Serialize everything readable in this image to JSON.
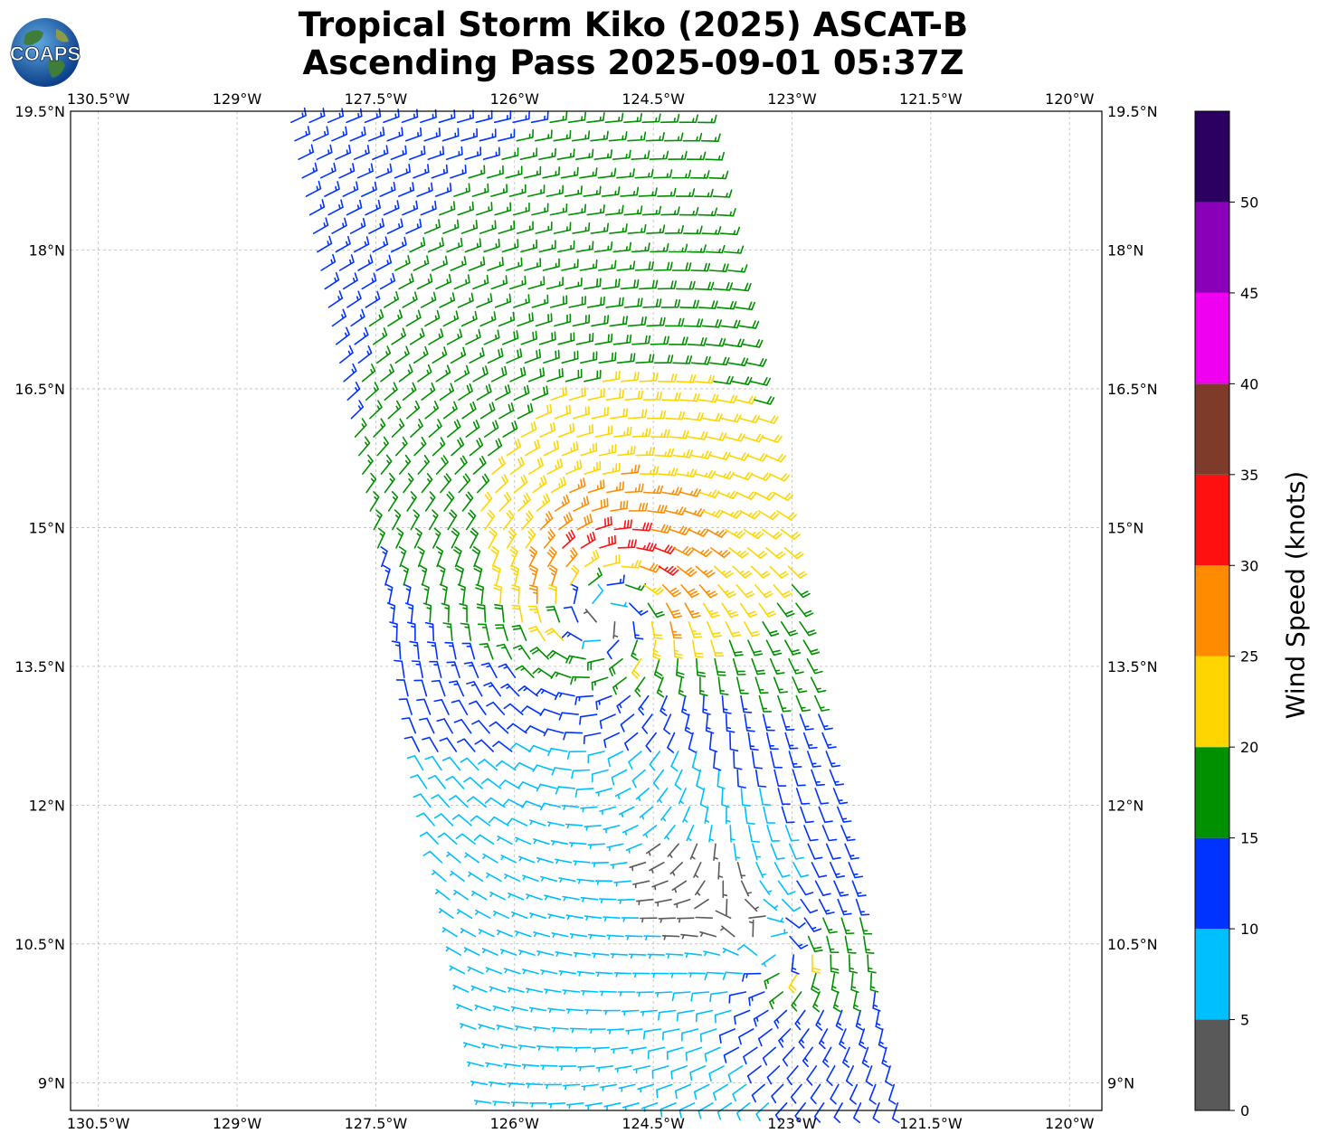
{
  "title_line1": "Tropical Storm Kiko (2025) ASCAT-B",
  "title_line2": "Ascending Pass 2025-09-01 05:37Z",
  "logo_text": "COAPS",
  "colorbar": {
    "label": "Wind Speed (knots)",
    "ticks": [
      "0",
      "5",
      "10",
      "15",
      "20",
      "25",
      "30",
      "35",
      "40",
      "45",
      "50"
    ],
    "bins": [
      {
        "min": 0,
        "max": 5,
        "color": "#595959"
      },
      {
        "min": 5,
        "max": 10,
        "color": "#00bfff"
      },
      {
        "min": 10,
        "max": 15,
        "color": "#0033ff"
      },
      {
        "min": 15,
        "max": 20,
        "color": "#009000"
      },
      {
        "min": 20,
        "max": 25,
        "color": "#ffd500"
      },
      {
        "min": 25,
        "max": 30,
        "color": "#ff8c00"
      },
      {
        "min": 30,
        "max": 35,
        "color": "#ff1010"
      },
      {
        "min": 35,
        "max": 40,
        "color": "#7f3b2a"
      },
      {
        "min": 40,
        "max": 45,
        "color": "#f000f0"
      },
      {
        "min": 45,
        "max": 50,
        "color": "#8a00b8"
      },
      {
        "min": 50,
        "max": 55,
        "color": "#2c0060"
      }
    ]
  },
  "chart_data": {
    "type": "wind-barb map",
    "lon_range": [
      -130.8,
      -119.65
    ],
    "lat_range": [
      8.7,
      19.5
    ],
    "lon_ticks": [
      -130.5,
      -129,
      -127.5,
      -126,
      -124.5,
      -123,
      -121.5,
      -120
    ],
    "lon_tick_labels": [
      "130.5°W",
      "129°W",
      "127.5°W",
      "126°W",
      "124.5°W",
      "123°W",
      "121.5°W",
      "120°W"
    ],
    "lat_ticks": [
      19.5,
      18,
      16.5,
      15,
      13.5,
      12,
      10.5,
      9
    ],
    "lat_tick_labels": [
      "19.5°N",
      "18°N",
      "16.5°N",
      "15°N",
      "13.5°N",
      "12°N",
      "10.5°N",
      "9°N"
    ],
    "grid": true,
    "storm_center": {
      "lon": -125.0,
      "lat": 14.2
    },
    "secondary_center": {
      "lon": -123.1,
      "lat": 10.4
    },
    "swath": {
      "top_left": [
        -128.5,
        19.5
      ],
      "top_right": [
        -123.9,
        19.5
      ],
      "bottom_right": [
        -121.6,
        8.7
      ],
      "bottom_left": [
        -126.3,
        8.7
      ]
    }
  }
}
